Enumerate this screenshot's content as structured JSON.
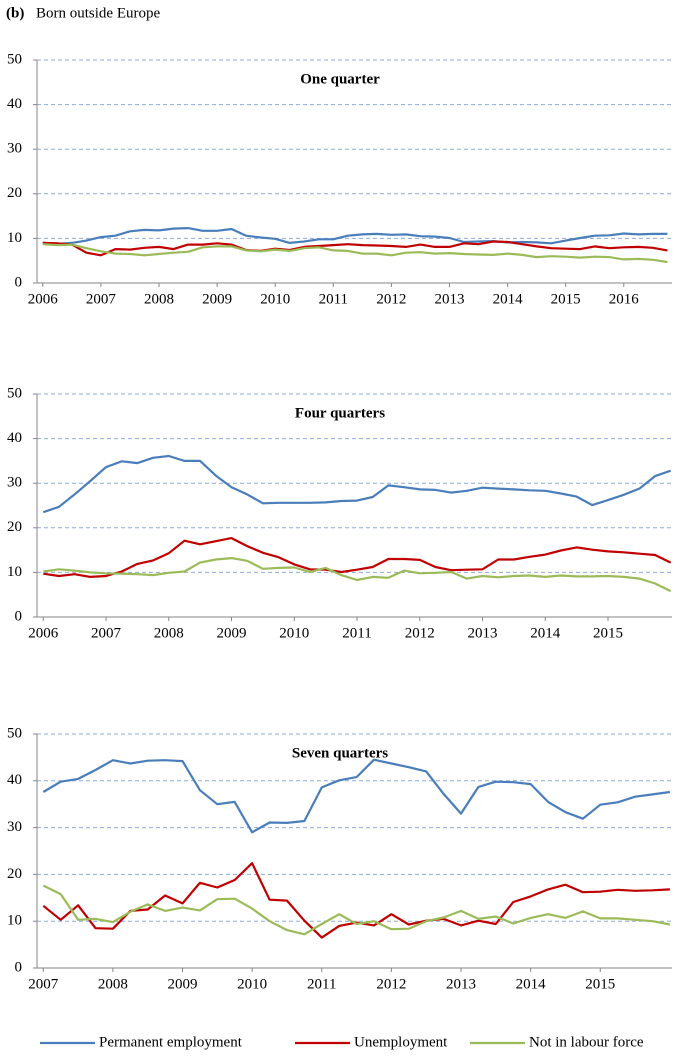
{
  "title": {
    "label": "(b)",
    "text": "Born outside Europe"
  },
  "chart_data": [
    {
      "type": "line",
      "title": "One quarter",
      "grid": true,
      "xlim": [
        2005.9,
        2016.83
      ],
      "xticks": [
        2006,
        2007,
        2008,
        2009,
        2010,
        2011,
        2012,
        2013,
        2014,
        2015,
        2016
      ],
      "ylim": [
        0,
        50
      ],
      "yticks": [
        0,
        10,
        20,
        30,
        40,
        50
      ],
      "x": [
        2006,
        2006.25,
        2006.5,
        2006.75,
        2007,
        2007.25,
        2007.5,
        2007.75,
        2008,
        2008.25,
        2008.5,
        2008.75,
        2009,
        2009.25,
        2009.5,
        2009.75,
        2010,
        2010.25,
        2010.5,
        2010.75,
        2011,
        2011.25,
        2011.5,
        2011.75,
        2012,
        2012.25,
        2012.5,
        2012.75,
        2013,
        2013.25,
        2013.5,
        2013.75,
        2014,
        2014.25,
        2014.5,
        2014.75,
        2015,
        2015.25,
        2015.5,
        2015.75,
        2016,
        2016.25,
        2016.5,
        2016.75
      ],
      "series": [
        {
          "color": "#4a7ebb",
          "values": [
            9,
            8.8,
            9,
            9.5,
            10.3,
            10.6,
            11.6,
            11.9,
            11.8,
            12.2,
            12.3,
            11.7,
            11.7,
            12.1,
            10.6,
            10.2,
            9.9,
            9,
            9.3,
            9.8,
            9.8,
            10.6,
            10.9,
            11,
            10.8,
            10.9,
            10.5,
            10.4,
            10.1,
            9.2,
            9.3,
            9.4,
            9.1,
            9.2,
            9.1,
            8.9,
            9.5,
            10.1,
            10.6,
            10.7,
            11.1,
            10.9,
            11,
            11
          ]
        },
        {
          "color": "#c00000",
          "values": [
            9,
            8.9,
            8.6,
            6.8,
            6.2,
            7.6,
            7.5,
            7.9,
            8.1,
            7.6,
            8.6,
            8.6,
            8.9,
            8.6,
            7.4,
            7.2,
            7.7,
            7.4,
            8.1,
            8.3,
            8.5,
            8.7,
            8.5,
            8.4,
            8.3,
            8.1,
            8.6,
            8.1,
            8.1,
            8.9,
            8.7,
            9.3,
            9.2,
            8.7,
            8.2,
            7.8,
            7.7,
            7.6,
            8.2,
            7.8,
            8,
            8.1,
            7.9,
            7.3
          ]
        },
        {
          "color": "#9bbb59",
          "values": [
            8.7,
            8.5,
            8.6,
            7.8,
            7.1,
            6.6,
            6.5,
            6.2,
            6.5,
            6.8,
            7,
            8,
            8.2,
            8.2,
            7.3,
            7.1,
            7.5,
            7.2,
            7.8,
            8,
            7.3,
            7.2,
            6.6,
            6.6,
            6.2,
            6.8,
            6.9,
            6.6,
            6.7,
            6.5,
            6.4,
            6.3,
            6.6,
            6.3,
            5.8,
            6,
            5.9,
            5.7,
            5.9,
            5.8,
            5.3,
            5.4,
            5.2,
            4.7
          ]
        }
      ]
    },
    {
      "type": "line",
      "title": "Four quarters",
      "grid": true,
      "xlim": [
        2005.9,
        2016.02
      ],
      "xticks": [
        2006,
        2007,
        2008,
        2009,
        2010,
        2011,
        2012,
        2013,
        2014,
        2015
      ],
      "ylim": [
        0,
        50
      ],
      "yticks": [
        0,
        10,
        20,
        30,
        40,
        50
      ],
      "x": [
        2006,
        2006.25,
        2006.5,
        2006.75,
        2007,
        2007.25,
        2007.5,
        2007.75,
        2008,
        2008.25,
        2008.5,
        2008.75,
        2009,
        2009.25,
        2009.5,
        2009.75,
        2010,
        2010.25,
        2010.5,
        2010.75,
        2011,
        2011.25,
        2011.5,
        2011.75,
        2012,
        2012.25,
        2012.5,
        2012.75,
        2013,
        2013.25,
        2013.5,
        2013.75,
        2014,
        2014.25,
        2014.5,
        2014.75,
        2015,
        2015.25,
        2015.5,
        2015.75,
        2016
      ],
      "series": [
        {
          "color": "#4a7ebb",
          "values": [
            23.5,
            24.7,
            27.5,
            30.5,
            33.6,
            34.9,
            34.5,
            35.7,
            36.1,
            35,
            35,
            31.7,
            29.1,
            27.5,
            25.5,
            25.6,
            25.6,
            25.6,
            25.7,
            26,
            26.1,
            26.9,
            29.5,
            29.1,
            28.6,
            28.5,
            27.9,
            28.3,
            29,
            28.8,
            28.6,
            28.4,
            28.3,
            27.7,
            27,
            25.1,
            26.2,
            27.4,
            28.8,
            31.6,
            32.8
          ]
        },
        {
          "color": "#c00000",
          "values": [
            9.7,
            9.2,
            9.6,
            9,
            9.2,
            10.2,
            11.9,
            12.7,
            14.3,
            17.1,
            16.3,
            17,
            17.7,
            15.9,
            14.4,
            13.4,
            11.8,
            10.7,
            10.6,
            10.1,
            10.6,
            11.2,
            13,
            13,
            12.8,
            11.2,
            10.5,
            10.6,
            10.7,
            12.9,
            12.9,
            13.5,
            14,
            14.9,
            15.6,
            15.1,
            14.7,
            14.5,
            14.2,
            13.9,
            12.2
          ]
        },
        {
          "color": "#9bbb59",
          "values": [
            10.2,
            10.7,
            10.4,
            10,
            9.8,
            9.7,
            9.6,
            9.4,
            9.9,
            10.2,
            12.2,
            12.9,
            13.2,
            12.6,
            10.8,
            11,
            11.1,
            10.1,
            11,
            9.4,
            8.3,
            9,
            8.8,
            10.4,
            9.8,
            9.9,
            10.1,
            8.6,
            9.2,
            8.9,
            9.2,
            9.3,
            9,
            9.3,
            9.1,
            9.1,
            9.2,
            9,
            8.6,
            7.5,
            5.8
          ]
        }
      ]
    },
    {
      "type": "line",
      "title": "Seven quarters",
      "grid": true,
      "xlim": [
        2006.91,
        2016.03
      ],
      "xticks": [
        2007,
        2008,
        2009,
        2010,
        2011,
        2012,
        2013,
        2014,
        2015
      ],
      "ylim": [
        0,
        50
      ],
      "yticks": [
        0,
        10,
        20,
        30,
        40,
        50
      ],
      "x": [
        2007,
        2007.25,
        2007.5,
        2007.75,
        2008,
        2008.25,
        2008.5,
        2008.75,
        2009,
        2009.25,
        2009.5,
        2009.75,
        2010,
        2010.25,
        2010.5,
        2010.75,
        2011,
        2011.25,
        2011.5,
        2011.75,
        2012,
        2012.25,
        2012.5,
        2012.75,
        2013,
        2013.25,
        2013.5,
        2013.75,
        2014,
        2014.25,
        2014.5,
        2014.75,
        2015,
        2015.25,
        2015.5,
        2015.75,
        2016
      ],
      "series": [
        {
          "name": "Permanent employment",
          "color": "#4a7ebb",
          "values": [
            37.6,
            39.8,
            40.4,
            42.3,
            44.4,
            43.7,
            44.3,
            44.4,
            44.2,
            38,
            35,
            35.5,
            29,
            31.1,
            31,
            31.4,
            38.6,
            40.1,
            40.8,
            44.5,
            43.7,
            42.9,
            42,
            37.2,
            33,
            38.7,
            39.8,
            39.7,
            39.3,
            35.5,
            33.3,
            31.9,
            34.9,
            35.4,
            36.6,
            37.1,
            37.6
          ]
        },
        {
          "name": "Unemployment",
          "color": "#c00000",
          "values": [
            13.3,
            10.3,
            13.4,
            8.5,
            8.4,
            12.2,
            12.5,
            15.5,
            13.8,
            18.2,
            17.2,
            18.8,
            22.4,
            14.6,
            14.4,
            10.1,
            6.5,
            9,
            9.7,
            9.1,
            11.5,
            9.3,
            10.1,
            10.5,
            9.1,
            10.1,
            9.4,
            14.1,
            15.3,
            16.8,
            17.8,
            16.2,
            16.3,
            16.7,
            16.5,
            16.6,
            16.8
          ]
        },
        {
          "name": "Not in labour force",
          "color": "#9bbb59",
          "values": [
            17.6,
            15.8,
            10.3,
            10.5,
            9.8,
            12,
            13.6,
            12.2,
            12.9,
            12.3,
            14.7,
            14.8,
            12.7,
            10,
            8.1,
            7.2,
            9.4,
            11.5,
            9.4,
            10,
            8.3,
            8.4,
            10,
            10.8,
            12.2,
            10.5,
            11,
            9.5,
            10.7,
            11.5,
            10.7,
            12.1,
            10.6,
            10.6,
            10.3,
            10,
            9.3
          ]
        }
      ]
    }
  ]
}
